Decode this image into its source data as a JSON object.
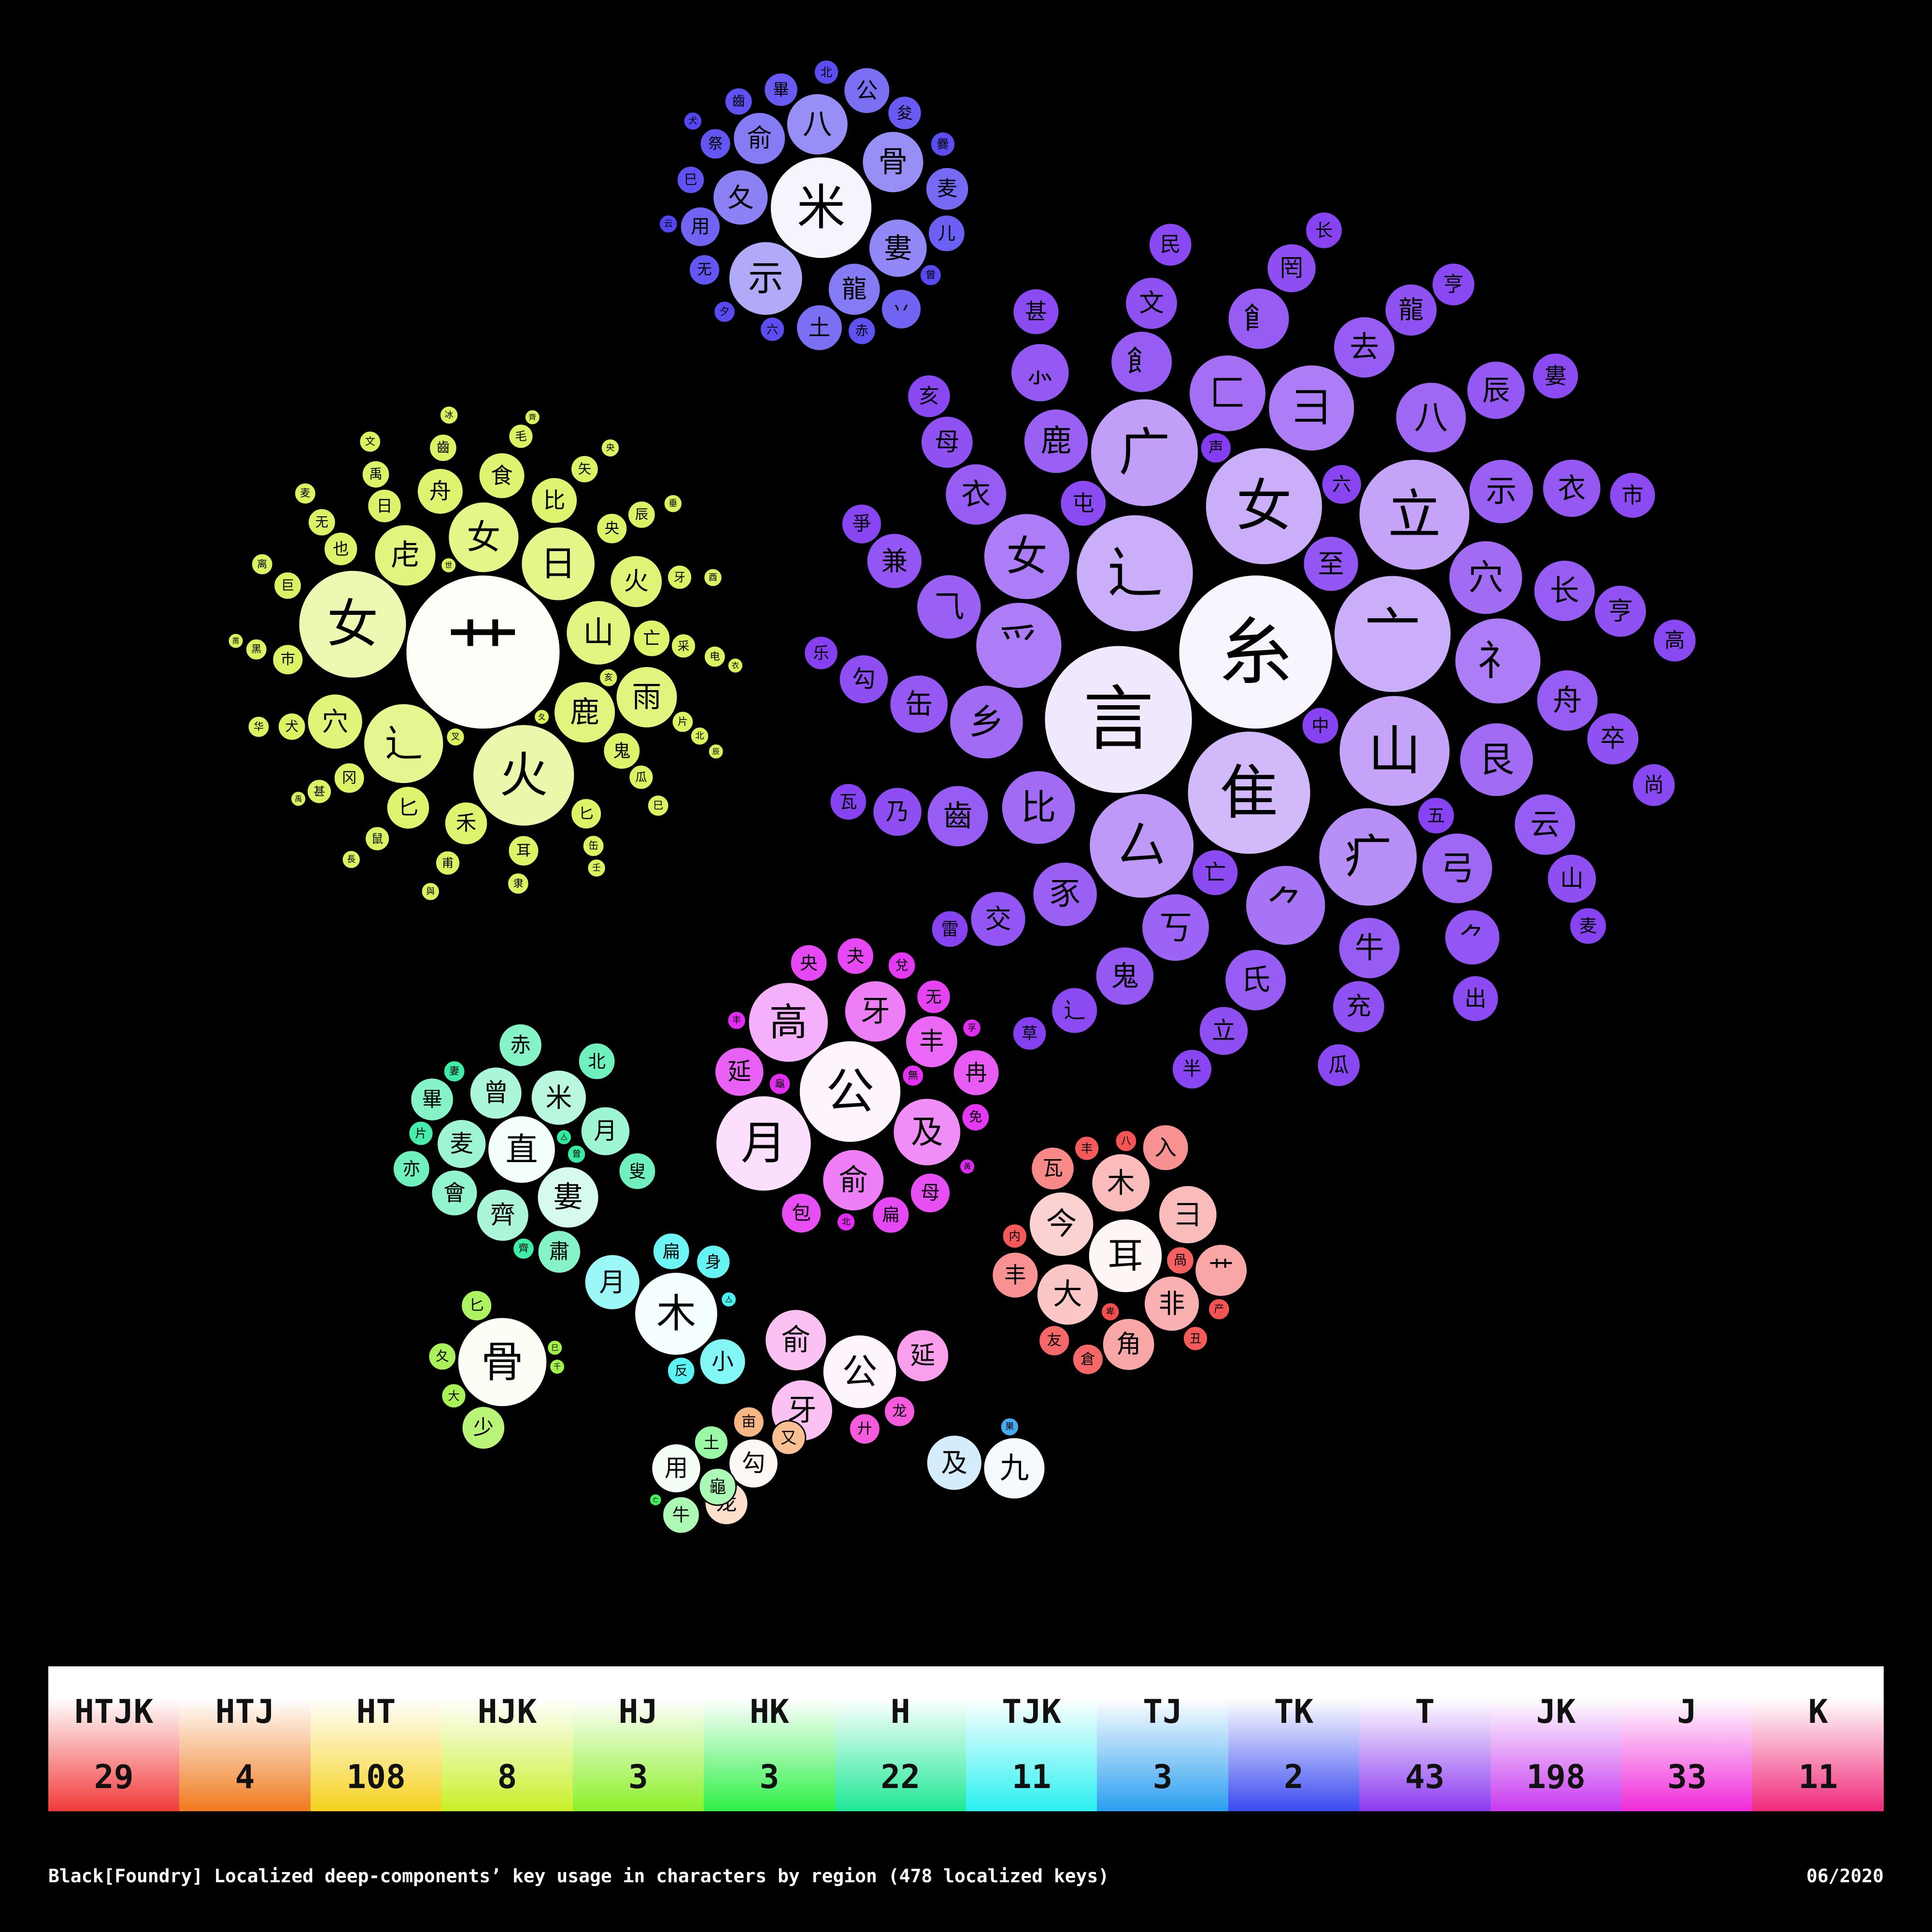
{
  "chart_data": {
    "type": "bubble-pack",
    "note_units": "bubble size = relative usage weight; label = component glyph",
    "clusters": [
      {
        "region": "T",
        "color": "#7a2ef0",
        "items": [
          [
            "糸",
            100
          ],
          [
            "言",
            96
          ],
          [
            "亠",
            76
          ],
          [
            "⻌",
            76
          ],
          [
            "广",
            70
          ],
          [
            "山",
            72
          ],
          [
            "隹",
            80
          ],
          [
            "女",
            76
          ],
          [
            "立",
            72
          ],
          [
            "厶",
            68
          ],
          [
            "疒",
            64
          ],
          [
            "爫",
            56
          ],
          [
            "⺭",
            56
          ],
          [
            "女",
            56
          ],
          [
            "⺈",
            52
          ],
          [
            "彐",
            56
          ],
          [
            "匚",
            50
          ],
          [
            "八",
            46
          ],
          [
            "弓",
            46
          ],
          [
            "穴",
            48
          ],
          [
            "艮",
            48
          ],
          [
            "比",
            48
          ],
          [
            "鹿",
            42
          ],
          [
            "示",
            42
          ],
          [
            "⻟",
            40
          ],
          [
            "乡",
            48
          ],
          [
            "豕",
            42
          ],
          [
            "长",
            40
          ],
          [
            "文",
            34
          ],
          [
            "立",
            32
          ],
          [
            "舟",
            40
          ],
          [
            "丂",
            44
          ],
          [
            "牛",
            40
          ],
          [
            "衣",
            40
          ],
          [
            "缶",
            38
          ],
          [
            "至",
            36
          ],
          [
            "亥",
            28
          ],
          [
            "亡",
            30
          ],
          [
            "⺈",
            36
          ],
          [
            "去",
            40
          ],
          [
            "氏",
            40
          ],
          [
            "⺄",
            42
          ],
          [
            "⻞",
            40
          ],
          [
            "亨",
            34
          ],
          [
            "罔",
            32
          ],
          [
            "屯",
            30
          ],
          [
            "六",
            26
          ],
          [
            "⻌",
            30
          ],
          [
            "中",
            24
          ],
          [
            "卒",
            34
          ],
          [
            "充",
            34
          ],
          [
            "鬼",
            38
          ],
          [
            "⺗",
            38
          ],
          [
            "云",
            40
          ],
          [
            "齒",
            40
          ],
          [
            "辰",
            38
          ],
          [
            "母",
            34
          ],
          [
            "山",
            32
          ],
          [
            "甚",
            30
          ],
          [
            "五",
            24
          ],
          [
            "雷",
            24
          ],
          [
            "长",
            24
          ],
          [
            "麦",
            24
          ],
          [
            "乃",
            32
          ],
          [
            "龍",
            34
          ],
          [
            "交",
            36
          ],
          [
            "衣",
            38
          ],
          [
            "兼",
            36
          ],
          [
            "勾",
            32
          ],
          [
            "婁",
            30
          ],
          [
            "民",
            28
          ],
          [
            "爭",
            26
          ],
          [
            "乐",
            22
          ],
          [
            "草",
            22
          ],
          [
            "半",
            26
          ],
          [
            "亨",
            28
          ],
          [
            "高",
            28
          ],
          [
            "市",
            30
          ],
          [
            "出",
            30
          ],
          [
            "尚",
            28
          ],
          [
            "瓜",
            28
          ],
          [
            "瓦",
            24
          ],
          [
            "声",
            20
          ]
        ]
      },
      {
        "region": "HJK",
        "color": "#d8f25a",
        "items": [
          [
            "艹",
            100
          ],
          [
            "女",
            70
          ],
          [
            "火",
            66
          ],
          [
            "⻌",
            52
          ],
          [
            "山",
            42
          ],
          [
            "日",
            48
          ],
          [
            "女",
            46
          ],
          [
            "鹿",
            40
          ],
          [
            "虍",
            40
          ],
          [
            "穴",
            36
          ],
          [
            "火",
            34
          ],
          [
            "雨",
            40
          ],
          [
            "舟",
            30
          ],
          [
            "比",
            30
          ],
          [
            "禾",
            28
          ],
          [
            "食",
            30
          ],
          [
            "匕",
            28
          ],
          [
            "亡",
            24
          ],
          [
            "鬼",
            24
          ],
          [
            "也",
            22
          ],
          [
            "日",
            22
          ],
          [
            "央",
            20
          ],
          [
            "冈",
            20
          ],
          [
            "匕",
            20
          ],
          [
            "巿",
            20
          ],
          [
            "耳",
            20
          ],
          [
            "犬",
            18
          ],
          [
            "巨",
            18
          ],
          [
            "无",
            18
          ],
          [
            "禹",
            18
          ],
          [
            "齒",
            18
          ],
          [
            "矢",
            18
          ],
          [
            "采",
            16
          ],
          [
            "辰",
            18
          ],
          [
            "瓜",
            16
          ],
          [
            "牙",
            16
          ],
          [
            "甫",
            16
          ],
          [
            "片",
            14
          ],
          [
            "缶",
            14
          ],
          [
            "鼠",
            16
          ],
          [
            "甚",
            16
          ],
          [
            "黑",
            14
          ],
          [
            "毛",
            16
          ],
          [
            "电",
            14
          ],
          [
            "巳",
            14
          ],
          [
            "隶",
            14
          ],
          [
            "华",
            14
          ],
          [
            "叉",
            12
          ],
          [
            "亥",
            12
          ],
          [
            "离",
            14
          ],
          [
            "麦",
            14
          ],
          [
            "文",
            14
          ],
          [
            "北",
            12
          ],
          [
            "夂",
            10
          ],
          [
            "冰",
            12
          ],
          [
            "央",
            12
          ],
          [
            "垂",
            12
          ],
          [
            "酉",
            12
          ],
          [
            "壬",
            12
          ],
          [
            "與",
            12
          ],
          [
            "長",
            12
          ],
          [
            "世",
            10
          ],
          [
            "禹",
            10
          ],
          [
            "齊",
            10
          ],
          [
            "黹",
            10
          ],
          [
            "衣",
            10
          ],
          [
            "辰",
            10
          ]
        ]
      },
      {
        "region": "TK",
        "color": "#4a3af0",
        "items": [
          [
            "米",
            66
          ],
          [
            "示",
            48
          ],
          [
            "八",
            40
          ],
          [
            "骨",
            40
          ],
          [
            "婁",
            38
          ],
          [
            "夂",
            36
          ],
          [
            "龍",
            34
          ],
          [
            "俞",
            34
          ],
          [
            "土",
            30
          ],
          [
            "公",
            30
          ],
          [
            "麦",
            28
          ],
          [
            "用",
            26
          ],
          [
            "丷",
            26
          ],
          [
            "儿",
            24
          ],
          [
            "畢",
            22
          ],
          [
            "祭",
            20
          ],
          [
            "夋",
            22
          ],
          [
            "无",
            20
          ],
          [
            "赤",
            18
          ],
          [
            "巳",
            18
          ],
          [
            "齒",
            18
          ],
          [
            "六",
            16
          ],
          [
            "北",
            16
          ],
          [
            "爨",
            16
          ],
          [
            "曾",
            14
          ],
          [
            "夕",
            14
          ],
          [
            "云",
            12
          ],
          [
            "犬",
            12
          ]
        ]
      },
      {
        "region": "JK",
        "color": "#e01ef0",
        "items": [
          [
            "公",
            66
          ],
          [
            "月",
            62
          ],
          [
            "高",
            52
          ],
          [
            "及",
            44
          ],
          [
            "牙",
            40
          ],
          [
            "俞",
            40
          ],
          [
            "丰",
            34
          ],
          [
            "延",
            32
          ],
          [
            "冉",
            30
          ],
          [
            "母",
            26
          ],
          [
            "包",
            26
          ],
          [
            "扁",
            24
          ],
          [
            "央",
            24
          ],
          [
            "夬",
            24
          ],
          [
            "无",
            22
          ],
          [
            "免",
            18
          ],
          [
            "兌",
            18
          ],
          [
            "無",
            14
          ],
          [
            "龜",
            14
          ],
          [
            "北",
            12
          ],
          [
            "丰",
            12
          ],
          [
            "孚",
            12
          ],
          [
            "黃",
            10
          ]
        ]
      },
      {
        "region": "H",
        "color": "#1ee896",
        "items": [
          [
            "直",
            44
          ],
          [
            "婁",
            40
          ],
          [
            "曾",
            34
          ],
          [
            "米",
            36
          ],
          [
            "齊",
            34
          ],
          [
            "會",
            30
          ],
          [
            "麦",
            32
          ],
          [
            "月",
            32
          ],
          [
            "畢",
            28
          ],
          [
            "赤",
            28
          ],
          [
            "肅",
            28
          ],
          [
            "亦",
            24
          ],
          [
            "北",
            24
          ],
          [
            "叟",
            24
          ],
          [
            "片",
            16
          ],
          [
            "曾",
            12
          ],
          [
            "齊",
            14
          ],
          [
            "妻",
            14
          ],
          [
            "亼",
            10
          ]
        ]
      },
      {
        "region": "HTJK",
        "color": "#f23a3a",
        "items": [
          [
            "耳",
            48
          ],
          [
            "今",
            42
          ],
          [
            "大",
            40
          ],
          [
            "木",
            38
          ],
          [
            "非",
            36
          ],
          [
            "角",
            34
          ],
          [
            "彐",
            38
          ],
          [
            "艹",
            34
          ],
          [
            "丰",
            30
          ],
          [
            "入",
            30
          ],
          [
            "瓦",
            28
          ],
          [
            "倉",
            20
          ],
          [
            "丑",
            16
          ],
          [
            "咼",
            18
          ],
          [
            "友",
            20
          ],
          [
            "内",
            16
          ],
          [
            "产",
            14
          ],
          [
            "八",
            14
          ],
          [
            "卑",
            12
          ],
          [
            "丰",
            16
          ]
        ]
      },
      {
        "region": "J",
        "color": "#f22ad2",
        "items": [
          [
            "公",
            48
          ],
          [
            "牙",
            40
          ],
          [
            "俞",
            40
          ],
          [
            "延",
            34
          ],
          [
            "龙",
            20
          ],
          [
            "廾",
            20
          ]
        ]
      },
      {
        "region": "TJK",
        "color": "#3af0f0",
        "items": [
          [
            "木",
            54
          ],
          [
            "月",
            36
          ],
          [
            "小",
            30
          ],
          [
            "扁",
            24
          ],
          [
            "身",
            22
          ],
          [
            "反",
            18
          ],
          [
            "亼",
            10
          ]
        ]
      },
      {
        "region": "HJ",
        "color": "#9cf040",
        "items": [
          [
            "骨",
            58
          ],
          [
            "少",
            28
          ],
          [
            "匕",
            20
          ],
          [
            "夂",
            18
          ],
          [
            "大",
            16
          ],
          [
            "巳",
            10
          ],
          [
            "千",
            10
          ]
        ]
      },
      {
        "region": "HTJ",
        "color": "#f07a1e",
        "items": [
          [
            "勾",
            32
          ],
          [
            "龙",
            28
          ],
          [
            "又",
            22
          ],
          [
            "亩",
            20
          ]
        ]
      },
      {
        "region": "HK",
        "color": "#2ef046",
        "items": [
          [
            "用",
            32
          ],
          [
            "龜",
            24
          ],
          [
            "牛",
            24
          ],
          [
            "土",
            22
          ],
          [
            "亡",
            8
          ]
        ]
      },
      {
        "region": "TJ",
        "color": "#2a9ef0",
        "items": [
          [
            "九",
            40
          ],
          [
            "及",
            36
          ],
          [
            "果",
            12
          ]
        ]
      }
    ],
    "legend": [
      {
        "key": "HTJK",
        "count": "29",
        "color": "#f23a3a"
      },
      {
        "key": "HTJ",
        "count": "4",
        "color": "#f07a1e"
      },
      {
        "key": "HT",
        "count": "108",
        "color": "#f5d21e"
      },
      {
        "key": "HJK",
        "count": "8",
        "color": "#c8f028"
      },
      {
        "key": "HJ",
        "count": "3",
        "color": "#8cf028"
      },
      {
        "key": "HK",
        "count": "3",
        "color": "#2ef046"
      },
      {
        "key": "H",
        "count": "22",
        "color": "#1ee896"
      },
      {
        "key": "TJK",
        "count": "11",
        "color": "#2af0f0"
      },
      {
        "key": "TJ",
        "count": "3",
        "color": "#2a9ef0"
      },
      {
        "key": "TK",
        "count": "2",
        "color": "#3a4af0"
      },
      {
        "key": "T",
        "count": "43",
        "color": "#8a3af0"
      },
      {
        "key": "JK",
        "count": "198",
        "color": "#c83af0"
      },
      {
        "key": "J",
        "count": "33",
        "color": "#f02ad8"
      },
      {
        "key": "K",
        "count": "11",
        "color": "#f02a7a"
      }
    ]
  },
  "caption": {
    "left": "Black[Foundry] Localized deep-components’ key usage in characters by region (478 localized keys)",
    "right": "06/2020"
  }
}
